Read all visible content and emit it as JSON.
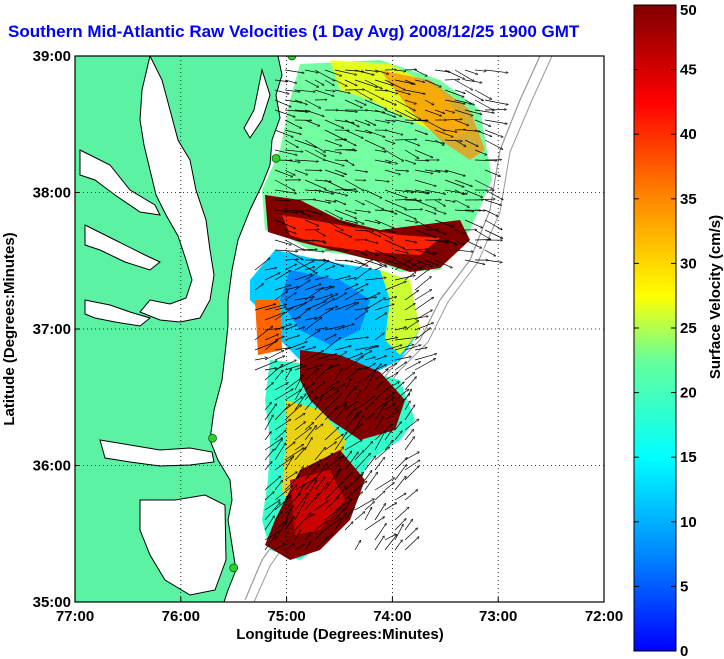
{
  "title": "Southern Mid-Atlantic Raw Velocities (1 Day Avg) 2008/12/25 1900 GMT",
  "colors": {
    "land": "#5cf2a4",
    "ocean": "#ffffff",
    "coast": "#000000",
    "bathymetry": "#999999",
    "stations": "#33cc33",
    "title": "#0000ff"
  },
  "map": {
    "xlabel": "Longitude (Degrees:Minutes)",
    "ylabel": "Latitude (Degrees:Minutes)",
    "lon_range": [
      -77,
      -72
    ],
    "lat_range": [
      35,
      39
    ],
    "x_ticks": [
      "77:00",
      "76:00",
      "75:00",
      "74:00",
      "73:00",
      "72:00"
    ],
    "y_ticks": [
      "35:00",
      "36:00",
      "37:00",
      "38:00",
      "39:00"
    ],
    "grid": "dotted"
  },
  "colorbar": {
    "label": "Surface Velocity (cm/s)",
    "range": [
      0,
      50
    ],
    "ticks": [
      "0",
      "5",
      "10",
      "15",
      "20",
      "25",
      "30",
      "35",
      "40",
      "45",
      "50"
    ],
    "colormap": "jet"
  },
  "stations": [
    {
      "lon": -74.95,
      "lat": 39.0
    },
    {
      "lon": -75.1,
      "lat": 38.25
    },
    {
      "lon": -75.7,
      "lat": 36.2
    },
    {
      "lon": -75.5,
      "lat": 35.25
    }
  ]
}
